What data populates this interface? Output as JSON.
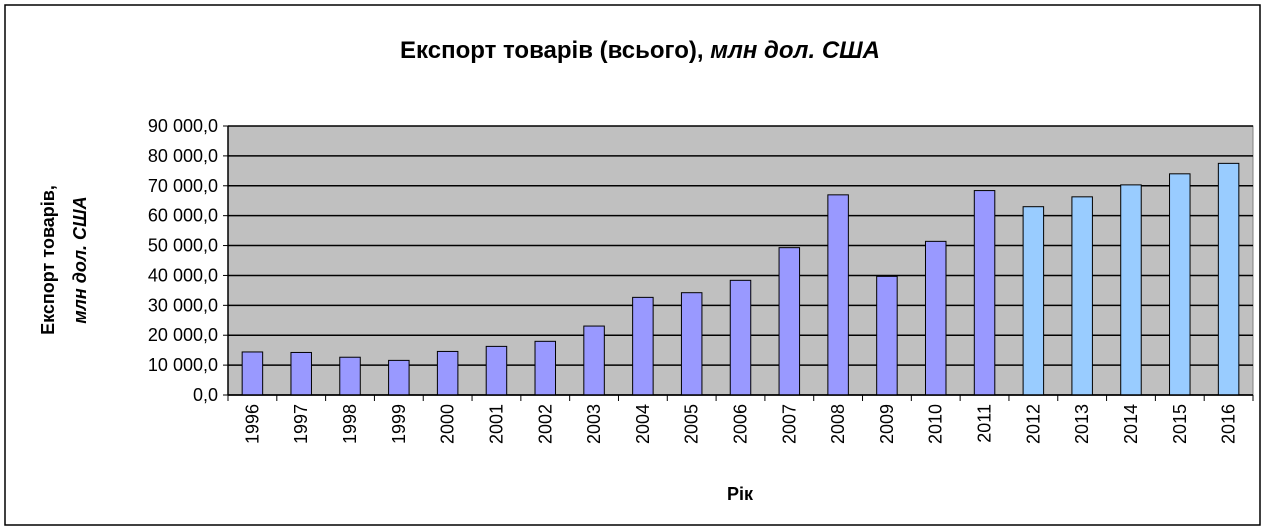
{
  "chart_data": {
    "type": "bar",
    "title": [
      "Експорт товарів (всього),",
      "млн дол. США"
    ],
    "y_label": [
      "Експорт товарів,",
      "млн дол. США"
    ],
    "x_label": "Рік",
    "categories": [
      "1996",
      "1997",
      "1998",
      "1999",
      "2000",
      "2001",
      "2002",
      "2003",
      "2004",
      "2005",
      "2006",
      "2007",
      "2008",
      "2009",
      "2010",
      "2011",
      "2012",
      "2013",
      "2014",
      "2015",
      "2016"
    ],
    "values": [
      14401,
      14232,
      12637,
      11582,
      14573,
      16265,
      17957,
      23067,
      32666,
      34228,
      38368,
      49296,
      66967,
      39696,
      51405,
      68394,
      63000,
      66300,
      70300,
      74000,
      77500
    ],
    "colors": [
      "#9999ff",
      "#9999ff",
      "#9999ff",
      "#9999ff",
      "#9999ff",
      "#9999ff",
      "#9999ff",
      "#9999ff",
      "#9999ff",
      "#9999ff",
      "#9999ff",
      "#9999ff",
      "#9999ff",
      "#9999ff",
      "#9999ff",
      "#9999ff",
      "#99ccff",
      "#99ccff",
      "#99ccff",
      "#99ccff",
      "#99ccff"
    ],
    "ylim": [
      0,
      90000
    ],
    "yticks": [
      {
        "value": 0,
        "label": "0,0"
      },
      {
        "value": 10000,
        "label": "10 000,0"
      },
      {
        "value": 20000,
        "label": "20 000,0"
      },
      {
        "value": 30000,
        "label": "30 000,0"
      },
      {
        "value": 40000,
        "label": "40 000,0"
      },
      {
        "value": 50000,
        "label": "50 000,0"
      },
      {
        "value": 60000,
        "label": "60 000,0"
      },
      {
        "value": 70000,
        "label": "70 000,0"
      },
      {
        "value": 80000,
        "label": "80 000,0"
      },
      {
        "value": 90000,
        "label": "90 000,0"
      }
    ],
    "grid": true,
    "plot_background": "#c0c0c0"
  }
}
